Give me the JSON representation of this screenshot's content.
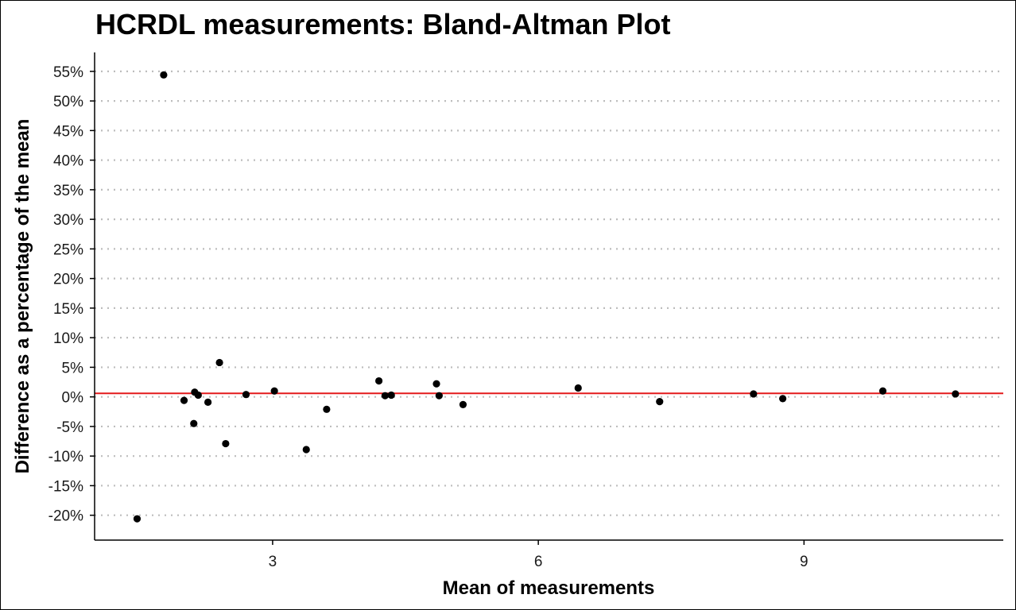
{
  "chart_data": {
    "type": "scatter",
    "title": "HCRDL measurements: Bland-Altman Plot",
    "xlabel": "Mean of measurements",
    "ylabel": "Difference as a percentage of the mean",
    "xlim": [
      0.99,
      11.25
    ],
    "ylim": [
      -24.2,
      58.2
    ],
    "x_ticks": [
      3,
      6,
      9
    ],
    "x_tick_labels": [
      "3",
      "6",
      "9"
    ],
    "y_ticks": [
      -20,
      -15,
      -10,
      -5,
      0,
      5,
      10,
      15,
      20,
      25,
      30,
      35,
      40,
      45,
      50,
      55
    ],
    "y_tick_labels": [
      "-20%",
      "-15%",
      "-10%",
      "-5%",
      "0%",
      "5%",
      "10%",
      "15%",
      "20%",
      "25%",
      "30%",
      "35%",
      "40%",
      "45%",
      "50%",
      "55%"
    ],
    "grid": "horizontal dotted",
    "legend": "none",
    "mean_line": 0.6,
    "mean_line_color": "#e31a1c",
    "point_color": "#000000",
    "points": [
      {
        "x": 1.47,
        "y": -20.6
      },
      {
        "x": 1.77,
        "y": 54.4
      },
      {
        "x": 2.0,
        "y": -0.6
      },
      {
        "x": 2.12,
        "y": 0.8
      },
      {
        "x": 2.11,
        "y": -4.5
      },
      {
        "x": 2.16,
        "y": 0.3
      },
      {
        "x": 2.27,
        "y": -0.9
      },
      {
        "x": 2.4,
        "y": 5.8
      },
      {
        "x": 2.47,
        "y": -7.9
      },
      {
        "x": 2.7,
        "y": 0.4
      },
      {
        "x": 3.02,
        "y": 1.0
      },
      {
        "x": 3.38,
        "y": -8.9
      },
      {
        "x": 3.61,
        "y": -2.1
      },
      {
        "x": 4.2,
        "y": 2.7
      },
      {
        "x": 4.27,
        "y": 0.2
      },
      {
        "x": 4.34,
        "y": 0.3
      },
      {
        "x": 4.85,
        "y": 2.2
      },
      {
        "x": 4.88,
        "y": 0.2
      },
      {
        "x": 5.15,
        "y": -1.3
      },
      {
        "x": 6.45,
        "y": 1.5
      },
      {
        "x": 7.37,
        "y": -0.8
      },
      {
        "x": 8.43,
        "y": 0.5
      },
      {
        "x": 8.76,
        "y": -0.3
      },
      {
        "x": 9.89,
        "y": 1.0
      },
      {
        "x": 10.71,
        "y": 0.5
      }
    ]
  }
}
